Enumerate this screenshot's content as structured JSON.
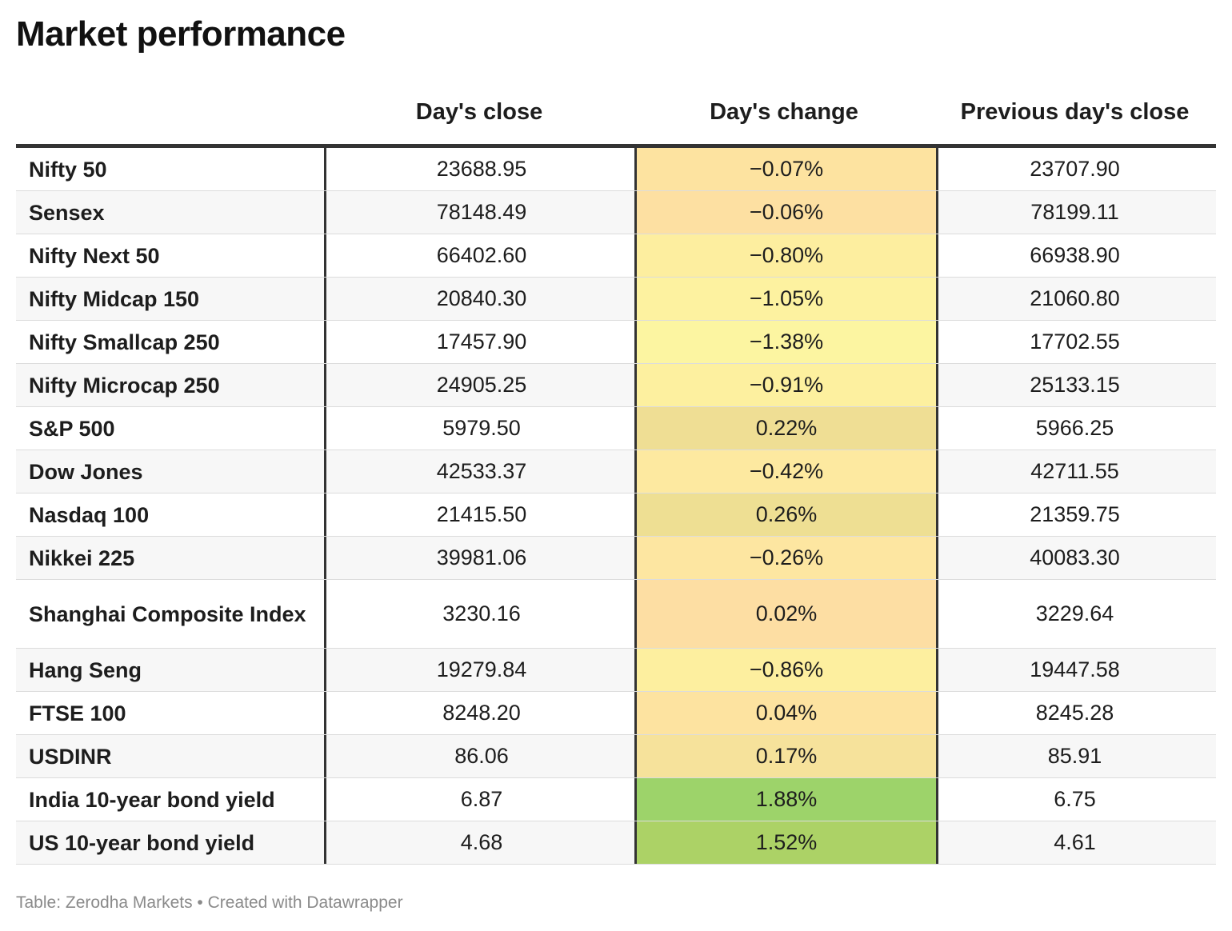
{
  "title": "Market performance",
  "footer": "Table: Zerodha Markets • Created with Datawrapper",
  "chart_data": {
    "type": "table",
    "columns": [
      "",
      "Day's close",
      "Day's change",
      "Previous day's close"
    ],
    "rows": [
      {
        "name": "Nifty 50",
        "close": "23688.95",
        "change": "−0.07%",
        "prev": "23707.90",
        "color": "#fde3a0"
      },
      {
        "name": "Sensex",
        "close": "78148.49",
        "change": "−0.06%",
        "prev": "78199.11",
        "color": "#fde0a2"
      },
      {
        "name": "Nifty Next 50",
        "close": "66402.60",
        "change": "−0.80%",
        "prev": "66938.90",
        "color": "#fdee9f"
      },
      {
        "name": "Nifty Midcap 150",
        "close": "20840.30",
        "change": "−1.05%",
        "prev": "21060.80",
        "color": "#fdf2a0"
      },
      {
        "name": "Nifty Smallcap 250",
        "close": "17457.90",
        "change": "−1.38%",
        "prev": "17702.55",
        "color": "#fcf5a1"
      },
      {
        "name": "Nifty Microcap 250",
        "close": "24905.25",
        "change": "−0.91%",
        "prev": "25133.15",
        "color": "#fdf09f"
      },
      {
        "name": "S&P 500",
        "close": "5979.50",
        "change": "0.22%",
        "prev": "5966.25",
        "color": "#efde94"
      },
      {
        "name": "Dow Jones",
        "close": "42533.37",
        "change": "−0.42%",
        "prev": "42711.55",
        "color": "#fde9a0"
      },
      {
        "name": "Nasdaq 100",
        "close": "21415.50",
        "change": "0.26%",
        "prev": "21359.75",
        "color": "#eedf93"
      },
      {
        "name": "Nikkei 225",
        "close": "39981.06",
        "change": "−0.26%",
        "prev": "40083.30",
        "color": "#fde6a1"
      },
      {
        "name": "Shanghai Composite Index",
        "close": "3230.16",
        "change": "0.02%",
        "prev": "3229.64",
        "color": "#fddea3",
        "tall": true
      },
      {
        "name": "Hang Seng",
        "close": "19279.84",
        "change": "−0.86%",
        "prev": "19447.58",
        "color": "#fdef9f"
      },
      {
        "name": "FTSE 100",
        "close": "8248.20",
        "change": "0.04%",
        "prev": "8245.28",
        "color": "#fde3a0"
      },
      {
        "name": "USDINR",
        "close": "86.06",
        "change": "0.17%",
        "prev": "85.91",
        "color": "#f6e29b"
      },
      {
        "name": "India 10-year bond yield",
        "close": "6.87",
        "change": "1.88%",
        "prev": "6.75",
        "color": "#9dd36a"
      },
      {
        "name": "US 10-year bond yield",
        "close": "4.68",
        "change": "1.52%",
        "prev": "4.61",
        "color": "#acd266"
      }
    ]
  }
}
